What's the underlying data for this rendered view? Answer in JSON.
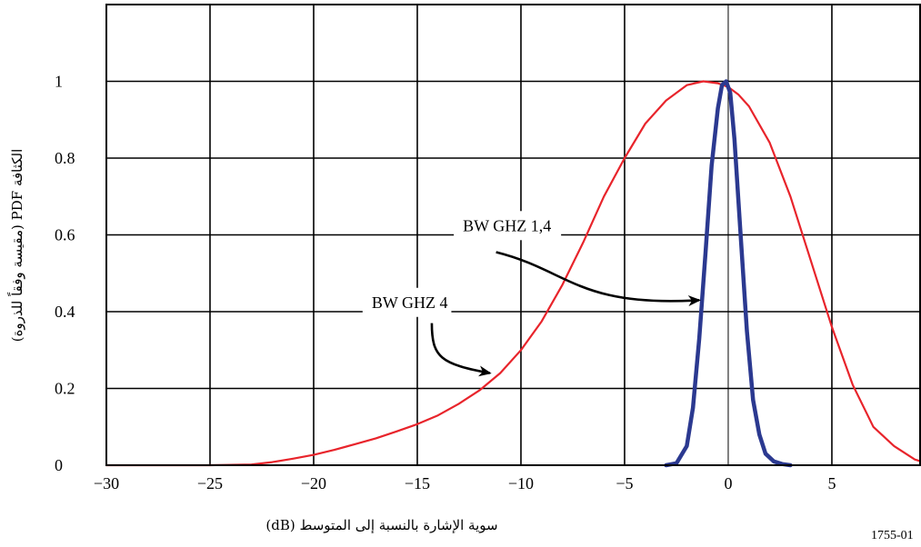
{
  "chart_data": {
    "type": "line",
    "title": "",
    "xlabel": "سوية الإشارة بالنسبة إلى المتوسط (dB)",
    "ylabel": "الكثافة PDF (مقيسة وفقاً للذروة)",
    "xlim": [
      -30,
      9.3
    ],
    "ylim": [
      0,
      1.2
    ],
    "x_ticks": [
      -30,
      -25,
      -20,
      -15,
      -10,
      -5,
      0,
      5
    ],
    "x_tick_labels": [
      "−30",
      "−25",
      "−20",
      "−15",
      "−10",
      "−5",
      "0",
      "5"
    ],
    "y_ticks": [
      0,
      0.2,
      0.4,
      0.6,
      0.8,
      1
    ],
    "y_tick_labels": [
      "0",
      "0.2",
      "0.4",
      "0.6",
      "0.8",
      "1"
    ],
    "grid": true,
    "series": [
      {
        "color": "#e8242b",
        "x": [
          -30,
          -27,
          -25,
          -23,
          -22,
          -21,
          -20,
          -19,
          -18,
          -17,
          -16,
          -15,
          -14,
          -13,
          -12,
          -11,
          -10,
          -9,
          -8,
          -7,
          -6,
          -5,
          -4,
          -3,
          -2,
          -1.2,
          -0.5,
          0,
          0.5,
          1,
          2,
          3,
          4,
          5,
          6,
          7,
          8,
          9,
          9.3
        ],
        "y": [
          0,
          0,
          0,
          0.002,
          0.008,
          0.017,
          0.027,
          0.04,
          0.055,
          0.07,
          0.088,
          0.107,
          0.13,
          0.16,
          0.195,
          0.24,
          0.3,
          0.375,
          0.47,
          0.58,
          0.7,
          0.8,
          0.89,
          0.95,
          0.99,
          1.0,
          0.995,
          0.985,
          0.965,
          0.935,
          0.84,
          0.7,
          0.53,
          0.36,
          0.21,
          0.1,
          0.05,
          0.015,
          0.01
        ]
      },
      {
        "color": "#2b3990",
        "x": [
          -3.0,
          -2.5,
          -2.0,
          -1.7,
          -1.4,
          -1.1,
          -0.8,
          -0.5,
          -0.3,
          -0.1,
          0.1,
          0.3,
          0.6,
          0.9,
          1.2,
          1.5,
          1.8,
          2.2,
          2.6,
          3.0
        ],
        "y": [
          0,
          0.005,
          0.05,
          0.15,
          0.33,
          0.55,
          0.78,
          0.93,
          0.99,
          1.0,
          0.97,
          0.85,
          0.6,
          0.35,
          0.17,
          0.08,
          0.03,
          0.01,
          0.003,
          0
        ]
      }
    ],
    "annotations": [
      {
        "text": "BW GHZ 1,4",
        "x": -12.8,
        "y": 0.61,
        "arrow_from": [
          -11.2,
          0.555
        ],
        "arrow_to": [
          -1.4,
          0.43
        ]
      },
      {
        "text": "BW GHZ 4",
        "x": -17.2,
        "y": 0.41,
        "arrow_from": [
          -14.3,
          0.37
        ],
        "arrow_to": [
          -11.5,
          0.24
        ]
      }
    ],
    "figure_id": "1755-01"
  }
}
